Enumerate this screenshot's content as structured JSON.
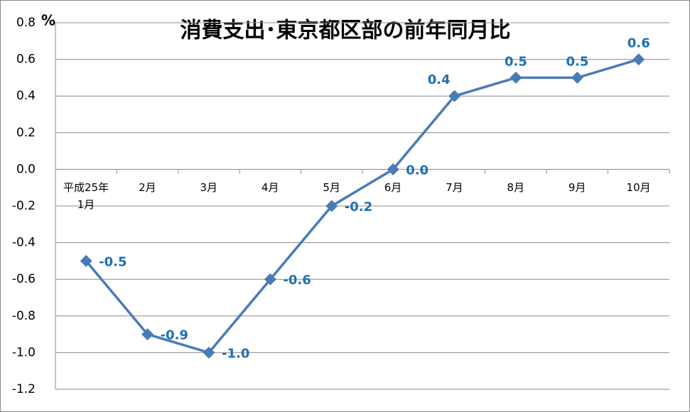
{
  "chart_data": {
    "type": "line",
    "title": "消費支出･東京都区部の前年同月比",
    "y_unit": "%",
    "categories": [
      "平成25年\n1月",
      "2月",
      "3月",
      "4月",
      "5月",
      "6月",
      "7月",
      "8月",
      "9月",
      "10月"
    ],
    "values": [
      -0.5,
      -0.9,
      -1.0,
      -0.6,
      -0.2,
      0,
      0.4,
      0.5,
      0.5,
      0.6
    ],
    "value_labels": [
      "-0.5",
      "-0.9",
      "-1.0",
      "-0.6",
      "-0.2",
      "0.0",
      "0.4",
      "0.5",
      "0.5",
      "0.6"
    ],
    "color": "#4a7ab8",
    "label_color": "#1f6fb0",
    "ylim": [
      -1.2,
      0.8
    ],
    "yticks": [
      -1.2,
      {
        "value": -1,
        "label": "-1.0"
      },
      -0.8,
      -0.6,
      -0.4,
      -0.2,
      {
        "value": 0,
        "label": "0.0"
      },
      0.2,
      0.4,
      0.6,
      0.8
    ],
    "grid": true
  }
}
